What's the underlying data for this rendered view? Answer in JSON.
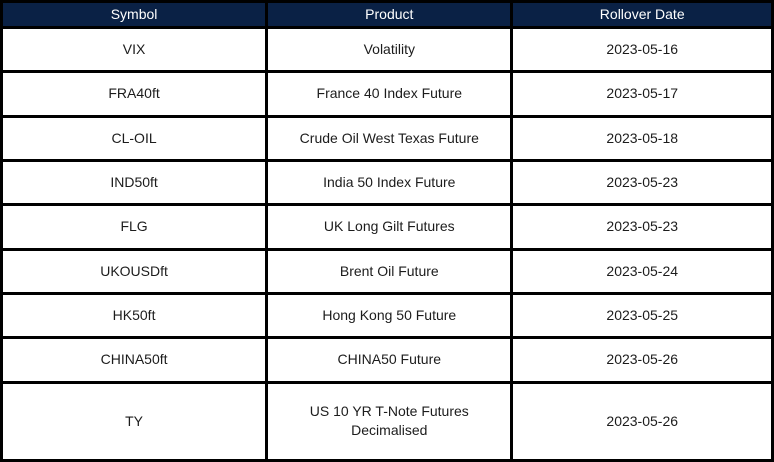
{
  "colors": {
    "header_bg": "#0a2145",
    "header_text": "#ffffff",
    "grid_border": "#000000",
    "row_bg": "#ffffff",
    "cell_text": "#1c1c1c"
  },
  "table": {
    "columns": [
      "Symbol",
      "Product",
      "Rollover Date"
    ],
    "rows": [
      {
        "symbol": "VIX",
        "product": "Volatility",
        "rollover_date": "2023-05-16"
      },
      {
        "symbol": "FRA40ft",
        "product": "France 40 Index Future",
        "rollover_date": "2023-05-17"
      },
      {
        "symbol": "CL-OIL",
        "product": "Crude Oil West Texas Future",
        "rollover_date": "2023-05-18"
      },
      {
        "symbol": "IND50ft",
        "product": "India 50 Index Future",
        "rollover_date": "2023-05-23"
      },
      {
        "symbol": "FLG",
        "product": "UK Long Gilt Futures",
        "rollover_date": "2023-05-23"
      },
      {
        "symbol": "UKOUSDft",
        "product": "Brent Oil Future",
        "rollover_date": "2023-05-24"
      },
      {
        "symbol": "HK50ft",
        "product": "Hong Kong 50 Future",
        "rollover_date": "2023-05-25"
      },
      {
        "symbol": "CHINA50ft",
        "product": "CHINA50 Future",
        "rollover_date": "2023-05-26"
      },
      {
        "symbol": "TY",
        "product": "US 10 YR T-Note Futures Decimalised",
        "rollover_date": "2023-05-26"
      }
    ]
  }
}
